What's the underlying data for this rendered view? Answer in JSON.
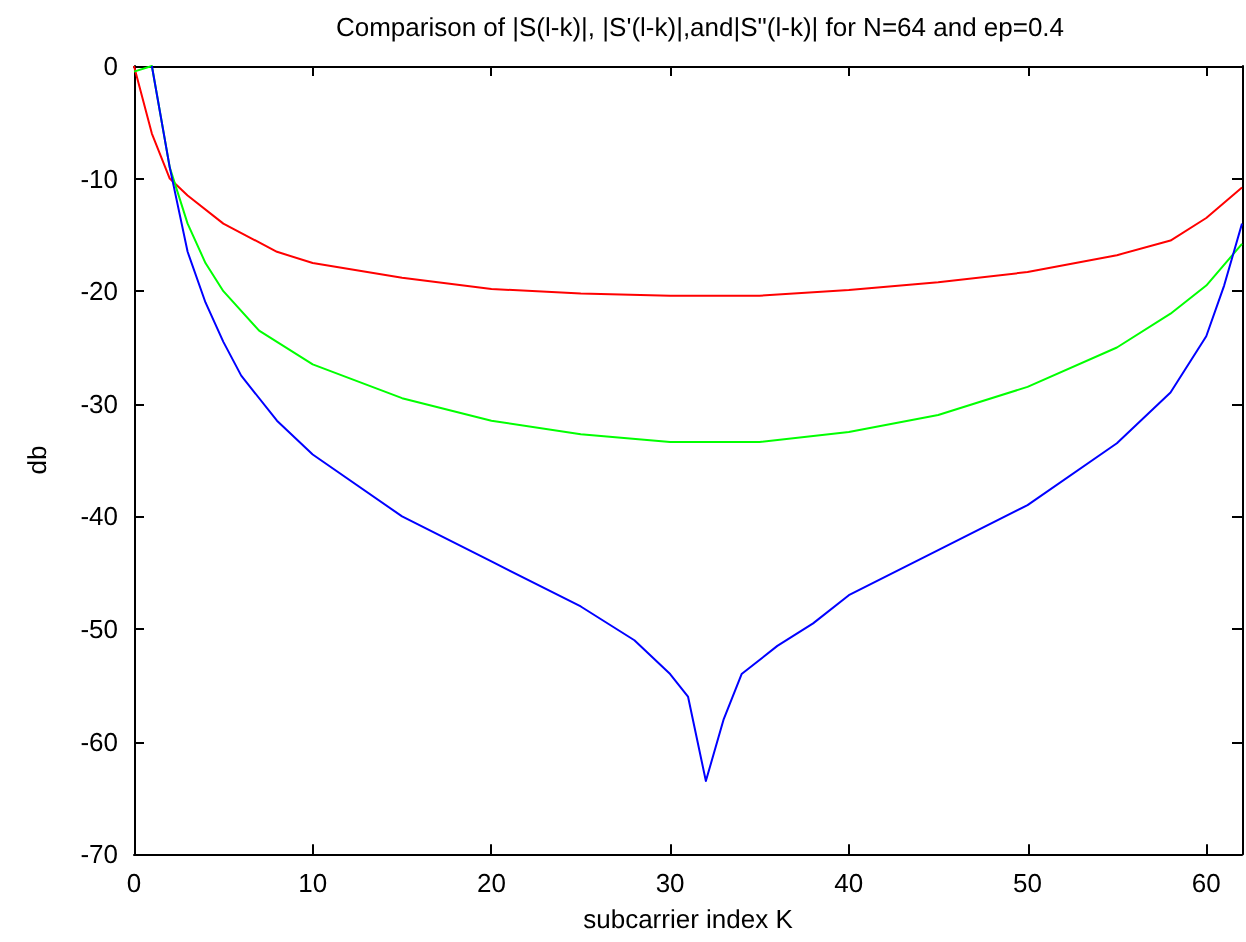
{
  "chart_data": {
    "type": "line",
    "title": "Comparison of |S(l-k)|, |S'(l-k)|,and|S\"(l-k)| for N=64 and ep=0.4",
    "xlabel": "subcarrier index K",
    "ylabel": "db",
    "xlim": [
      0,
      62
    ],
    "xticks": [
      0,
      10,
      20,
      30,
      40,
      50,
      60
    ],
    "ylim": [
      -70,
      0
    ],
    "yticks": [
      -70,
      -60,
      -50,
      -40,
      -30,
      -20,
      -10,
      0
    ],
    "marker": "none",
    "line_style": "solid",
    "series": [
      {
        "color": "#ff0000",
        "x": [
          0,
          1,
          2,
          3,
          5,
          8,
          10,
          15,
          20,
          25,
          30,
          35,
          40,
          45,
          50,
          55,
          58,
          60,
          62
        ],
        "values": [
          0,
          -6,
          -10,
          -11.5,
          -14,
          -16.5,
          -17.5,
          -18.8,
          -19.8,
          -20.2,
          -20.4,
          -20.4,
          -19.9,
          -19.2,
          -18.3,
          -16.8,
          -15.5,
          -13.5,
          -10.8
        ]
      },
      {
        "color": "#00ff00",
        "x": [
          0,
          1,
          2,
          3,
          4,
          5,
          7,
          10,
          15,
          20,
          25,
          30,
          35,
          40,
          45,
          50,
          55,
          58,
          60,
          62
        ],
        "values": [
          -0.5,
          0,
          -9,
          -14,
          -17.5,
          -20,
          -23.5,
          -26.5,
          -29.5,
          -31.5,
          -32.7,
          -33.4,
          -33.4,
          -32.5,
          -31,
          -28.5,
          -25,
          -22,
          -19.5,
          -15.8
        ]
      },
      {
        "color": "#0000ff",
        "x": [
          1,
          2,
          3,
          4,
          5,
          6,
          8,
          10,
          15,
          20,
          25,
          28,
          30,
          31,
          32,
          33,
          34,
          36,
          38,
          40,
          45,
          50,
          55,
          58,
          60,
          61,
          62
        ],
        "values": [
          0,
          -9,
          -16.5,
          -21,
          -24.5,
          -27.5,
          -31.5,
          -34.5,
          -40,
          -44,
          -48,
          -51,
          -54,
          -56,
          -63.5,
          -58,
          -54,
          -51.5,
          -49.5,
          -47,
          -43,
          -39,
          -33.5,
          -29,
          -24,
          -19.5,
          -14
        ]
      }
    ]
  }
}
